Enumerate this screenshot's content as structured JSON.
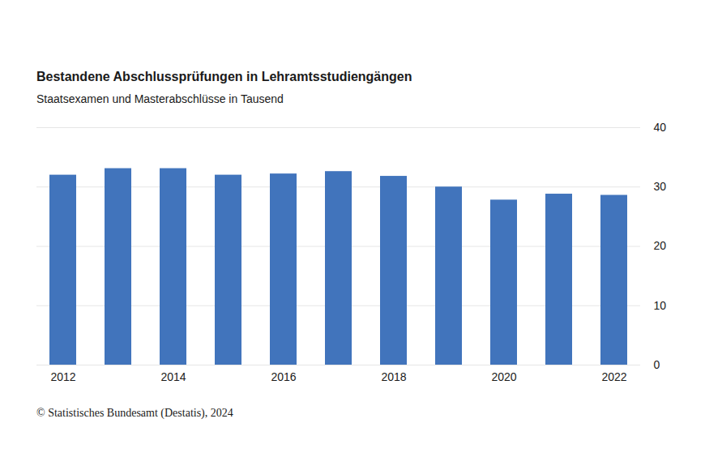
{
  "chart_data": {
    "type": "bar",
    "title": "Bestandene Abschlussprüfungen in Lehramtsstudiengängen",
    "subtitle": "Staatsexamen und Masterabschlüsse in Tausend",
    "caption": "© Statistisches Bundesamt (Destatis), 2024",
    "categories": [
      "2012",
      null,
      "2014",
      null,
      "2016",
      null,
      "2018",
      null,
      "2020",
      null,
      "2022"
    ],
    "values": [
      32.0,
      33.1,
      33.1,
      32.0,
      32.2,
      32.6,
      31.8,
      30.0,
      27.8,
      28.8,
      28.6
    ],
    "color": "#4174bc",
    "ylim": [
      0,
      40
    ],
    "yticks": [
      0,
      10,
      20,
      30,
      40
    ],
    "grid": true
  }
}
